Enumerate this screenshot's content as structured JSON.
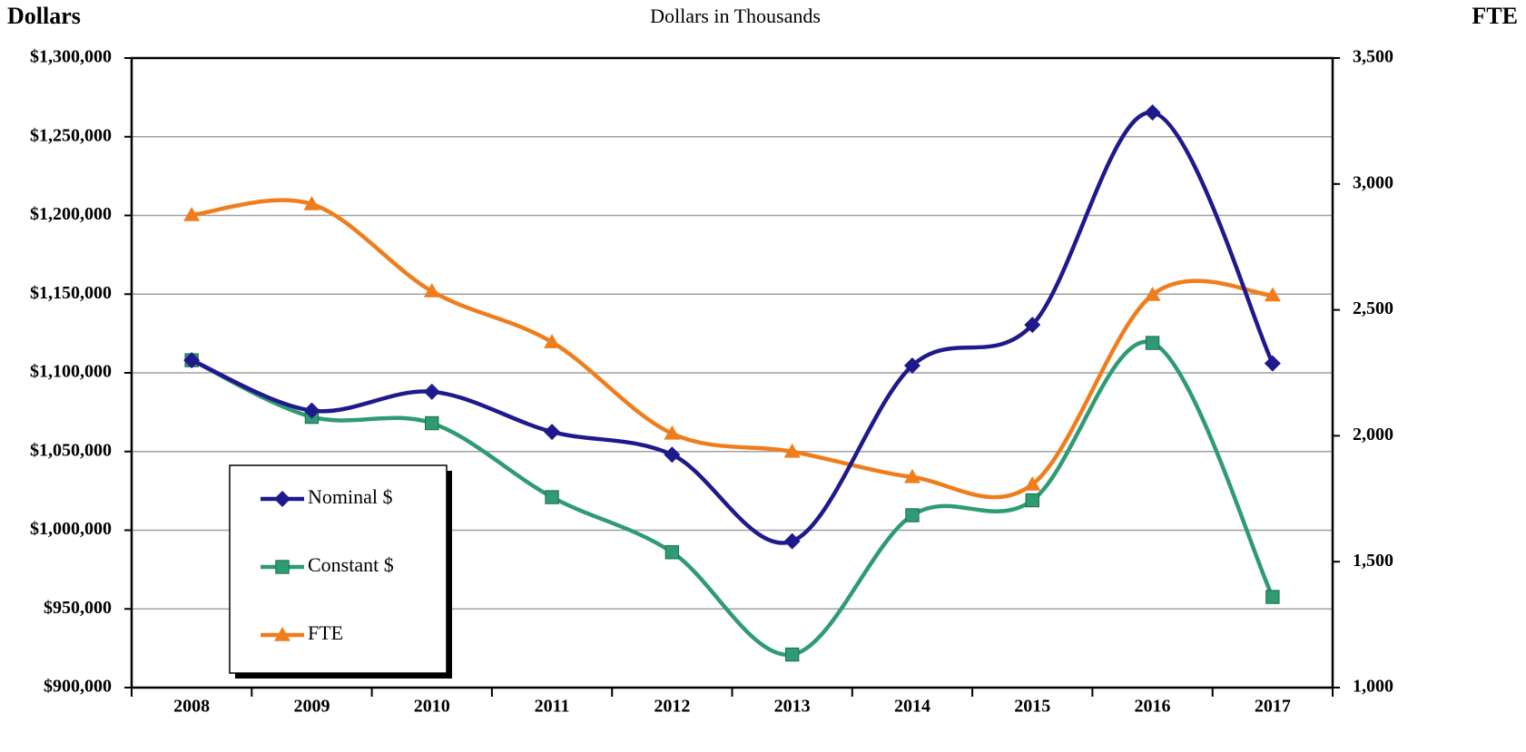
{
  "chart_data": {
    "type": "line",
    "title": "Dollars in Thousands",
    "y_label": "Dollars",
    "y2_label": "FTE",
    "categories": [
      "2008",
      "2009",
      "2010",
      "2011",
      "2012",
      "2013",
      "2014",
      "2015",
      "2016",
      "2017"
    ],
    "series": [
      {
        "name": "Nominal $",
        "color": "#1f1a8c",
        "marker": "diamond",
        "values": [
          1108000,
          1076000,
          1088000,
          1062500,
          1048000,
          993000,
          1104600,
          1130500,
          1265400,
          1106000
        ]
      },
      {
        "name": "Constant $",
        "color": "#2e9b73",
        "marker": "square",
        "values": [
          1108000,
          1072000,
          1068000,
          1021000,
          986000,
          921000,
          1009500,
          1019000,
          1119000,
          957600
        ]
      },
      {
        "name": "FTE",
        "color": "#f07d1c",
        "marker": "triangle",
        "axis": "y2",
        "values": [
          2877,
          2920,
          2574,
          2372,
          2009,
          1937,
          1836,
          1807,
          2560,
          2558
        ]
      }
    ],
    "ylim": [
      900000,
      1300000
    ],
    "yticks": [
      {
        "value": 900000,
        "label": "$900,000"
      },
      {
        "value": 950000,
        "label": "$950,000"
      },
      {
        "value": 1000000,
        "label": "$1,000,000"
      },
      {
        "value": 1050000,
        "label": "$1,050,000"
      },
      {
        "value": 1100000,
        "label": "$1,100,000"
      },
      {
        "value": 1150000,
        "label": "$1,150,000"
      },
      {
        "value": 1200000,
        "label": "$1,200,000"
      },
      {
        "value": 1250000,
        "label": "$1,250,000"
      },
      {
        "value": 1300000,
        "label": "$1,300,000"
      }
    ],
    "y2lim": [
      1000,
      3500
    ],
    "y2ticks": [
      {
        "value": 1000,
        "label": "1,000"
      },
      {
        "value": 1500,
        "label": "1,500"
      },
      {
        "value": 2000,
        "label": "2,000"
      },
      {
        "value": 2500,
        "label": "2,500"
      },
      {
        "value": 3000,
        "label": "3,000"
      },
      {
        "value": 3500,
        "label": "3,500"
      }
    ],
    "grid": true,
    "legend": "lower left"
  }
}
